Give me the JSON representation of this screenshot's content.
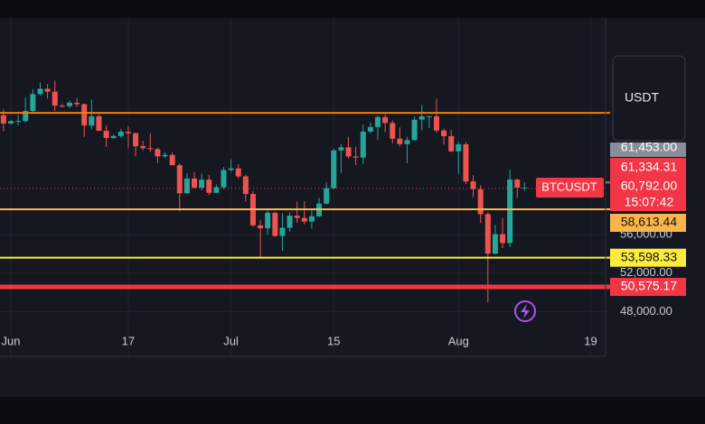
{
  "chart_data": {
    "type": "candlestick",
    "symbol": "BTCUSDT",
    "currency": "USDT",
    "categories": [
      null,
      "Jun",
      null,
      null,
      null,
      null,
      null,
      null,
      null,
      null,
      null,
      null,
      null,
      null,
      null,
      null,
      null,
      "17",
      null,
      null,
      null,
      null,
      null,
      null,
      null,
      null,
      null,
      null,
      null,
      null,
      null,
      "Jul",
      null,
      null,
      null,
      null,
      null,
      null,
      null,
      null,
      null,
      null,
      null,
      null,
      null,
      "15",
      null,
      null,
      null,
      null,
      null,
      null,
      null,
      null,
      null,
      null,
      null,
      null,
      null,
      null,
      null,
      null,
      "Aug",
      null,
      null,
      null,
      null,
      null,
      null,
      null,
      null,
      null,
      null,
      null,
      null,
      null,
      null,
      null,
      null,
      null,
      "19",
      null
    ],
    "open": [
      68350,
      67500,
      67750,
      67760,
      68800,
      70550,
      71100,
      70800,
      69350,
      69300,
      69650,
      69500,
      67300,
      68250,
      66750,
      66000,
      66200,
      66650,
      66500,
      65150,
      64950,
      64850,
      64100,
      64250,
      63180,
      60280,
      61800,
      60860,
      61680,
      60320,
      60900,
      62680,
      62850,
      62020,
      60200,
      56950,
      56650,
      58250,
      55850,
      56700,
      57950,
      57720,
      57340,
      57890,
      59200,
      60800,
      64720,
      65040,
      64090,
      63970,
      66660,
      67140,
      68170,
      67550,
      65930,
      65370,
      65780,
      67900,
      68250,
      68250,
      66780,
      66190,
      64620,
      65350,
      61500,
      60700,
      58110,
      54020,
      56040,
      55120,
      61700,
      60860,
      null,
      null,
      null,
      null,
      null,
      null,
      null,
      null,
      null,
      null
    ],
    "high": [
      69000,
      67850,
      68400,
      70200,
      71050,
      71760,
      71600,
      71950,
      69550,
      69850,
      70150,
      69560,
      69990,
      68450,
      67300,
      66400,
      66950,
      67230,
      66500,
      65700,
      66450,
      65000,
      64520,
      64490,
      63370,
      62350,
      62480,
      62300,
      62200,
      61200,
      63000,
      63800,
      63300,
      62180,
      60500,
      57500,
      58500,
      58350,
      58200,
      58300,
      59400,
      59450,
      58500,
      59800,
      61400,
      64870,
      65350,
      66100,
      65100,
      67400,
      67600,
      68350,
      68450,
      67800,
      67100,
      66120,
      68230,
      69400,
      68300,
      70080,
      66980,
      66810,
      65600,
      65580,
      62150,
      61110,
      58300,
      57000,
      57700,
      62700,
      61800,
      61400,
      null,
      null,
      null,
      null,
      null,
      null,
      null,
      null,
      null,
      null
    ],
    "low": [
      66700,
      67400,
      67300,
      67600,
      68600,
      70400,
      70100,
      68800,
      69200,
      69100,
      69200,
      66100,
      66900,
      66750,
      65080,
      65900,
      66020,
      64950,
      64100,
      64700,
      64550,
      63400,
      63930,
      63180,
      58400,
      60250,
      60770,
      60600,
      60080,
      60300,
      60700,
      62500,
      61800,
      59400,
      56800,
      53500,
      56020,
      55750,
      54300,
      56300,
      57200,
      57050,
      56600,
      57800,
      59100,
      60700,
      62400,
      63900,
      63200,
      63300,
      66450,
      65800,
      66600,
      65450,
      65100,
      63400,
      65720,
      66800,
      67050,
      66550,
      65300,
      64530,
      62300,
      61200,
      59850,
      57200,
      49000,
      53950,
      54600,
      54700,
      59800,
      60500,
      null,
      null,
      null,
      null,
      null,
      null,
      null,
      null,
      null,
      null
    ],
    "close": [
      67500,
      67750,
      67760,
      68800,
      70550,
      71100,
      70800,
      69350,
      69300,
      69650,
      69500,
      67300,
      68250,
      66750,
      66000,
      66200,
      66650,
      66500,
      65150,
      64950,
      64850,
      64100,
      64250,
      63180,
      60280,
      61800,
      60860,
      61680,
      60320,
      60900,
      62680,
      62850,
      62020,
      60200,
      56950,
      56650,
      58250,
      55850,
      56700,
      57950,
      57720,
      57340,
      57890,
      59200,
      60800,
      64720,
      65040,
      64090,
      63970,
      66660,
      67140,
      68170,
      67550,
      65930,
      65370,
      65780,
      67900,
      68250,
      68250,
      66780,
      66190,
      64620,
      65350,
      61500,
      60700,
      58110,
      54020,
      56040,
      55120,
      61700,
      60860,
      60870,
      null,
      null,
      null,
      null,
      null,
      null,
      null,
      null,
      null,
      null
    ],
    "up_color": "#26a69a",
    "down_color": "#ef5350",
    "ylim": [
      43380,
      74690
    ],
    "yticks": [
      {
        "value": 48000,
        "label": "48,000.00"
      },
      {
        "value": 52000,
        "label": "52,000.00"
      },
      {
        "value": 56000,
        "label": "56,000.00"
      }
    ],
    "grid": true,
    "lines": [
      {
        "value": 68600,
        "color": "#f57c00"
      },
      {
        "value": 58613.44,
        "label": "58,613.44",
        "color": "#f9b54a"
      },
      {
        "value": 53598.33,
        "label": "53,598.33",
        "color": "#ffeb3b"
      },
      {
        "value": 50575.17,
        "label": "50,575.17",
        "color": "#f23645"
      }
    ],
    "markers": [
      {
        "value": 61453,
        "label": "61,453.00"
      },
      {
        "value": 61334.31,
        "label": "61,334.31"
      }
    ],
    "last_price": {
      "value": 60792,
      "label": "60,792.00"
    },
    "countdown": "15:07:42"
  }
}
